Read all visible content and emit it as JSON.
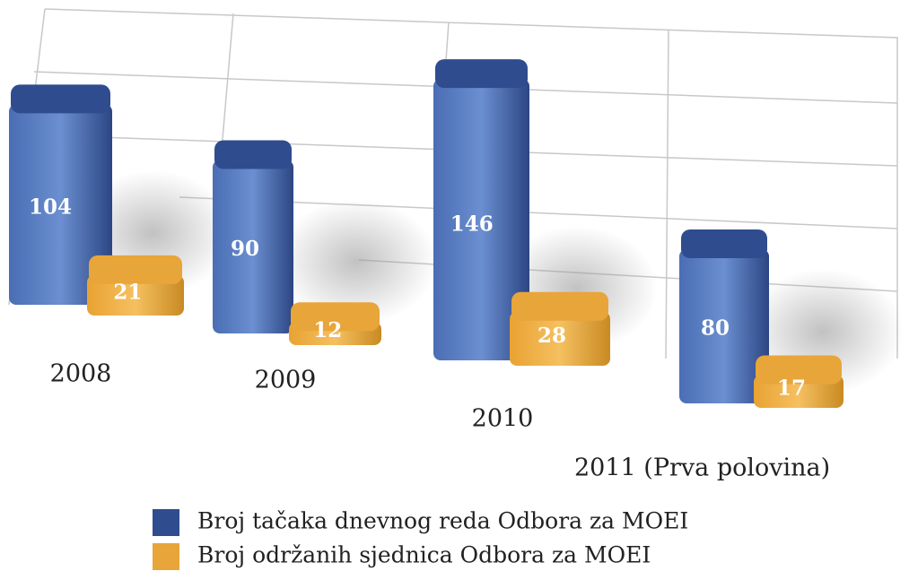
{
  "chart_data": {
    "type": "bar3d",
    "categories": [
      "2008",
      "2009",
      "2010",
      "2011 (Prva polovina)"
    ],
    "series": [
      {
        "name": "Broj tačaka dnevnog reda Odbora za MOEI",
        "color": "#2f4c8f",
        "values": [
          104,
          90,
          146,
          80
        ]
      },
      {
        "name": "Broj održanih sjednica Odbora za MOEI",
        "color": "#e8a53a",
        "values": [
          21,
          12,
          28,
          17
        ]
      }
    ]
  }
}
